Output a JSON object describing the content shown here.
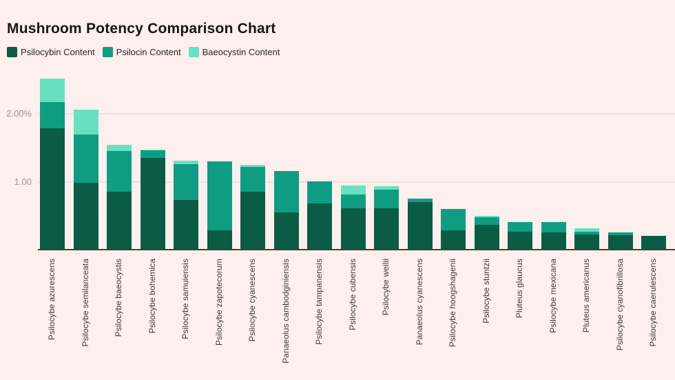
{
  "title": "Mushroom Potency Comparison Chart",
  "legend": [
    {
      "label": "Psilocybin Content",
      "color": "#0b5c45"
    },
    {
      "label": "Psilocin Content",
      "color": "#0f9d82"
    },
    {
      "label": "Baeocystin Content",
      "color": "#66e2c2"
    }
  ],
  "colors": {
    "background": "#fdefed",
    "title_text": "#161616",
    "psilocybin": "#0b5c45",
    "psilocin": "#0f9d82",
    "baeocystin": "#66e2c2",
    "gridline": "#f3dede",
    "axis_line": "#3f3f3f",
    "y_tick_text": "#9a9292",
    "category_text": "#3c3c3c"
  },
  "y_axis": {
    "ticks": [
      {
        "label": "1.00",
        "value": 1.0
      },
      {
        "label": "2.00%",
        "value": 2.0
      }
    ]
  },
  "chart_data": {
    "type": "bar",
    "stacked": true,
    "title": "Mushroom Potency Comparison Chart",
    "unit": "%",
    "ylim": [
      0,
      2.6
    ],
    "grid": "horizontal",
    "legend_position": "top-left",
    "categories": [
      "Psilocybe azurescens",
      "Psilocybe semilanceata",
      "Psilocybe baeocystis",
      "Psilocybe bohemica",
      "Psilocybe samuiensis",
      "Psilocybe zapotecorum",
      "Psilocybe cyanescens",
      "Panaeolus cambodginiensis",
      "Psilocybe tampanensis",
      "Psilocybe cubensis",
      "Psilocybe weilii",
      "Panaeolus cyanescens",
      "Psilocybe hoogshagenii",
      "Psilocybe stuntzii",
      "Pluteus glaucus",
      "Psilocybe mexicana",
      "Pluteus americanus",
      "Psilocybe cyanofibrillosa",
      "Psilocybe caerulescens"
    ],
    "series": [
      {
        "name": "Psilocybin Content",
        "color": "#0b5c45",
        "values": [
          1.78,
          0.98,
          0.85,
          1.34,
          0.73,
          0.28,
          0.85,
          0.55,
          0.68,
          0.61,
          0.61,
          0.7,
          0.28,
          0.36,
          0.26,
          0.25,
          0.22,
          0.21,
          0.2
        ]
      },
      {
        "name": "Psilocin Content",
        "color": "#0f9d82",
        "values": [
          0.38,
          0.71,
          0.59,
          0.11,
          0.52,
          1.01,
          0.36,
          0.6,
          0.32,
          0.2,
          0.27,
          0.05,
          0.32,
          0.12,
          0.14,
          0.15,
          0.04,
          0.04,
          0.0
        ]
      },
      {
        "name": "Baeocystin Content",
        "color": "#66e2c2",
        "values": [
          0.35,
          0.36,
          0.1,
          0.02,
          0.05,
          0.0,
          0.03,
          0.0,
          0.0,
          0.13,
          0.05,
          0.0,
          0.0,
          0.02,
          0.0,
          0.0,
          0.05,
          0.0,
          0.0
        ]
      }
    ]
  }
}
